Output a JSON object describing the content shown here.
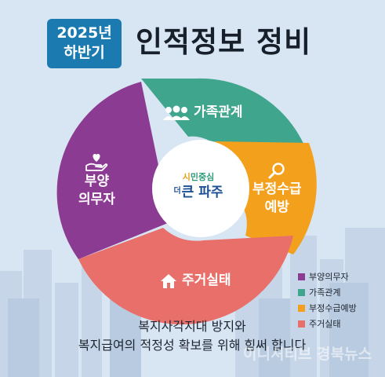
{
  "badge": {
    "line1": "2025년",
    "line2": "하반기"
  },
  "title": "인적정보 정비",
  "segments": [
    {
      "label": "가족관계",
      "icon": "people-icon",
      "color": "#3fa58d"
    },
    {
      "label_line1": "부정수급",
      "label_line2": "예방",
      "icon": "magnifier-icon",
      "color": "#f3a11c"
    },
    {
      "label": "주거실태",
      "icon": "house-icon",
      "color": "#e9706a"
    },
    {
      "label_line1": "부양",
      "label_line2": "의무자",
      "icon": "heart-hand-icon",
      "color": "#8c3b93"
    }
  ],
  "logo": {
    "top_prefix": "시",
    "top_rest": "민중심",
    "bottom_small": "더",
    "bottom_main": "큰 파주"
  },
  "legend": [
    {
      "label": "부양의무자",
      "color": "#8c3b93"
    },
    {
      "label": "가족관계",
      "color": "#3fa58d"
    },
    {
      "label": "부정수급예방",
      "color": "#f3a11c"
    },
    {
      "label": "주거실태",
      "color": "#e9706a"
    }
  ],
  "bottom": {
    "line1": "복지사각지대 방지와",
    "line2": "복지급여의 적정성 확보를 위해 힘써 합니다"
  },
  "watermark": "이니셔티브 경북뉴스"
}
